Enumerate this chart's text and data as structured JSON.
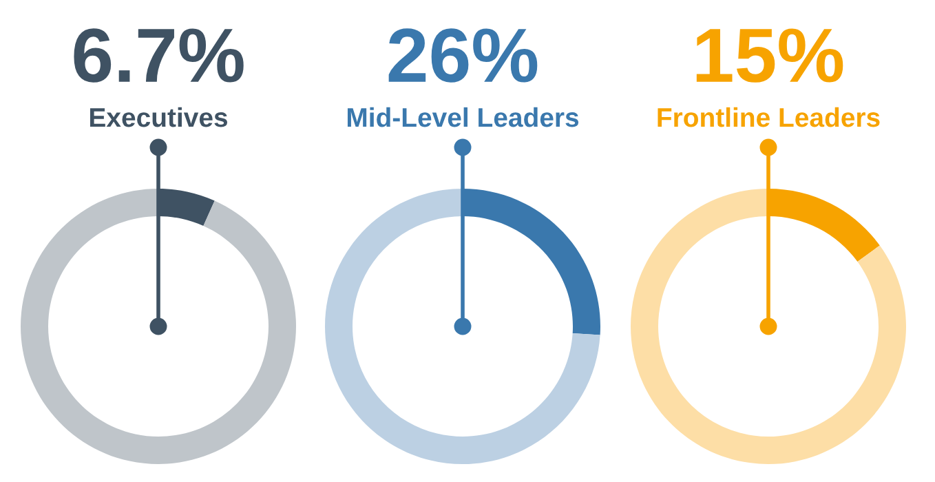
{
  "chart_data": [
    {
      "type": "donut",
      "title": "6.7%",
      "subtitle": "Executives",
      "categories": [
        null,
        null
      ],
      "values": [
        6.7,
        93.3
      ],
      "colors": [
        "#3f5263",
        "#bfc5ca"
      ]
    },
    {
      "type": "donut",
      "title": "26%",
      "subtitle": "Mid-Level Leaders",
      "categories": [
        null,
        null
      ],
      "values": [
        26,
        74
      ],
      "colors": [
        "#3a78ad",
        "#bcd0e3"
      ]
    },
    {
      "type": "donut",
      "title": "15%",
      "subtitle": "Frontline Leaders",
      "categories": [
        null,
        null
      ],
      "values": [
        15,
        85
      ],
      "colors": [
        "#f7a300",
        "#fddea6"
      ]
    }
  ]
}
